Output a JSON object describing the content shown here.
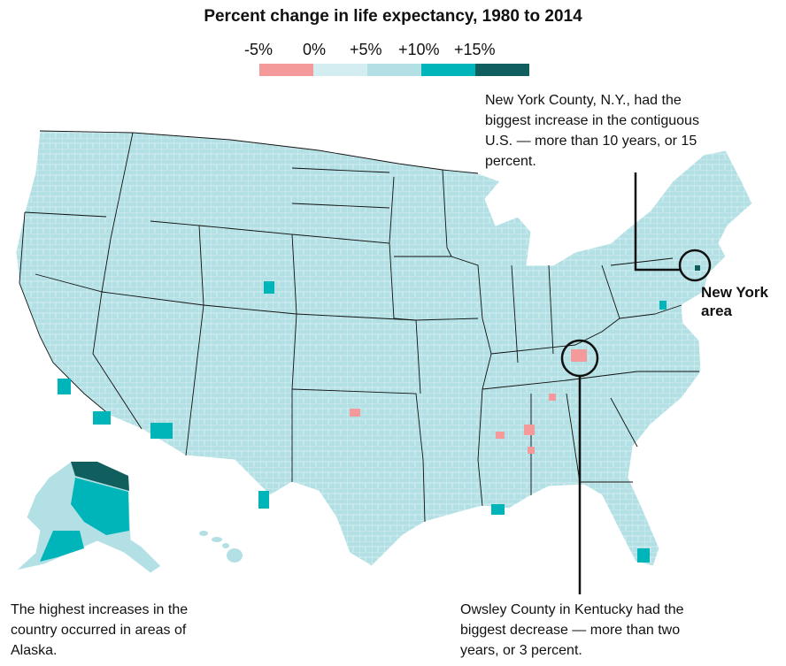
{
  "title": "Percent change in life expectancy, 1980 to 2014",
  "legend": {
    "labels": [
      "-5%",
      "0%",
      "+5%",
      "+10%",
      "+15%"
    ],
    "colors": [
      "#f49a9a",
      "#d4edf0",
      "#b2e0e4",
      "#00b5ba",
      "#115e5e"
    ]
  },
  "annotations": {
    "new_york": "New York County, N.Y., had the biggest increase in the contiguous U.S. — more than 10 years, or 15 percent.",
    "new_york_label": "New York area",
    "owsley": "Owsley County in Kentucky had the biggest decrease — more than two years, or 3 percent.",
    "alaska": "The highest increases in the country occurred in areas of Alaska."
  },
  "colors": {
    "map_base": "#b2e0e4",
    "border": "#111111",
    "county_border": "#ffffff"
  }
}
